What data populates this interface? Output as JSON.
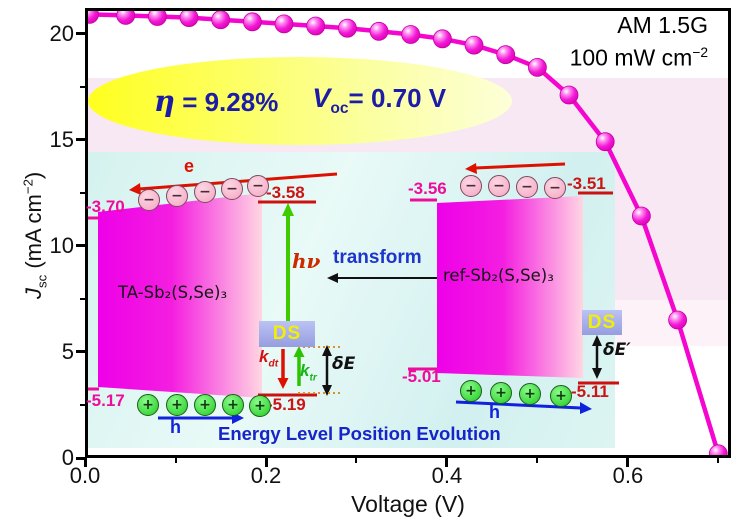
{
  "conditions": {
    "line1": "AM 1.5G",
    "line2_pre": "100 mW cm",
    "line2_sup": "−2"
  },
  "badge": {
    "eta_symbol": "η",
    "eta_rest": " = 9.28%",
    "voc_symbol": "V",
    "voc_sub": "oc",
    "voc_rest": "= 0.70 V"
  },
  "axes": {
    "x_label": "Voltage (V)",
    "y_symbol": "J",
    "y_sub": "sc",
    "y_units_pre": " (mA cm",
    "y_units_sup": "−2",
    "y_units_post": ")"
  },
  "chart_data": {
    "type": "line",
    "title": "",
    "xlabel": "Voltage (V)",
    "ylabel": "Jsc (mA cm−2)",
    "xlim": [
      0,
      0.714
    ],
    "ylim": [
      0,
      21.2
    ],
    "xticks": {
      "values": [
        0.0,
        0.2,
        0.4,
        0.6
      ],
      "labels": [
        "0.0",
        "0.2",
        "0.4",
        "0.6"
      ]
    },
    "xticks_minor": [
      0.1,
      0.3,
      0.5,
      0.7
    ],
    "yticks": {
      "values": [
        0,
        5,
        10,
        15,
        20
      ],
      "labels": [
        "0",
        "5",
        "10",
        "15",
        "20"
      ]
    },
    "yticks_minor": [
      2.5,
      7.5,
      12.5,
      17.5
    ],
    "grid": false,
    "legend": "none",
    "line_color": "#f506cf",
    "series": [
      {
        "name": "J-V curve under illumination",
        "x": [
          0.005,
          0.045,
          0.08,
          0.115,
          0.15,
          0.185,
          0.22,
          0.255,
          0.29,
          0.325,
          0.36,
          0.395,
          0.43,
          0.465,
          0.5,
          0.535,
          0.575,
          0.615,
          0.655,
          0.7
        ],
        "y": [
          20.9,
          20.85,
          20.8,
          20.75,
          20.65,
          20.55,
          20.45,
          20.35,
          20.25,
          20.1,
          19.95,
          19.75,
          19.45,
          19.0,
          18.4,
          17.1,
          14.9,
          11.4,
          6.5,
          0.2
        ]
      }
    ],
    "annotations": [
      "AM 1.5G",
      "100 mW cm−2",
      "η = 9.28%",
      "Voc = 0.70 V"
    ]
  },
  "inset": {
    "electron_symbol": "−",
    "hole_symbol": "+",
    "e_label": "e",
    "h_label": "h",
    "hv_label": "hν",
    "transform_label": "transform",
    "ds_label": "DS",
    "kdt_base": "k",
    "kdt_sub": "dt",
    "ktr_base": "k",
    "ktr_sub": "tr",
    "deltaE": "δE",
    "deltaE_prime": "δE′",
    "left_material": "TA-Sb₂(S,Se)₃",
    "right_material": "ref-Sb₂(S,Se)₃",
    "left_cb_left": "-3.70",
    "left_cb_right": "-3.58",
    "left_vb_left": "-5.17",
    "left_vb_right": "-5.19",
    "right_cb_left": "-3.56",
    "right_cb_right": "-3.51",
    "right_vb_left": "-5.01",
    "right_vb_right": "-5.11",
    "caption": "Energy Level Position Evolution"
  }
}
